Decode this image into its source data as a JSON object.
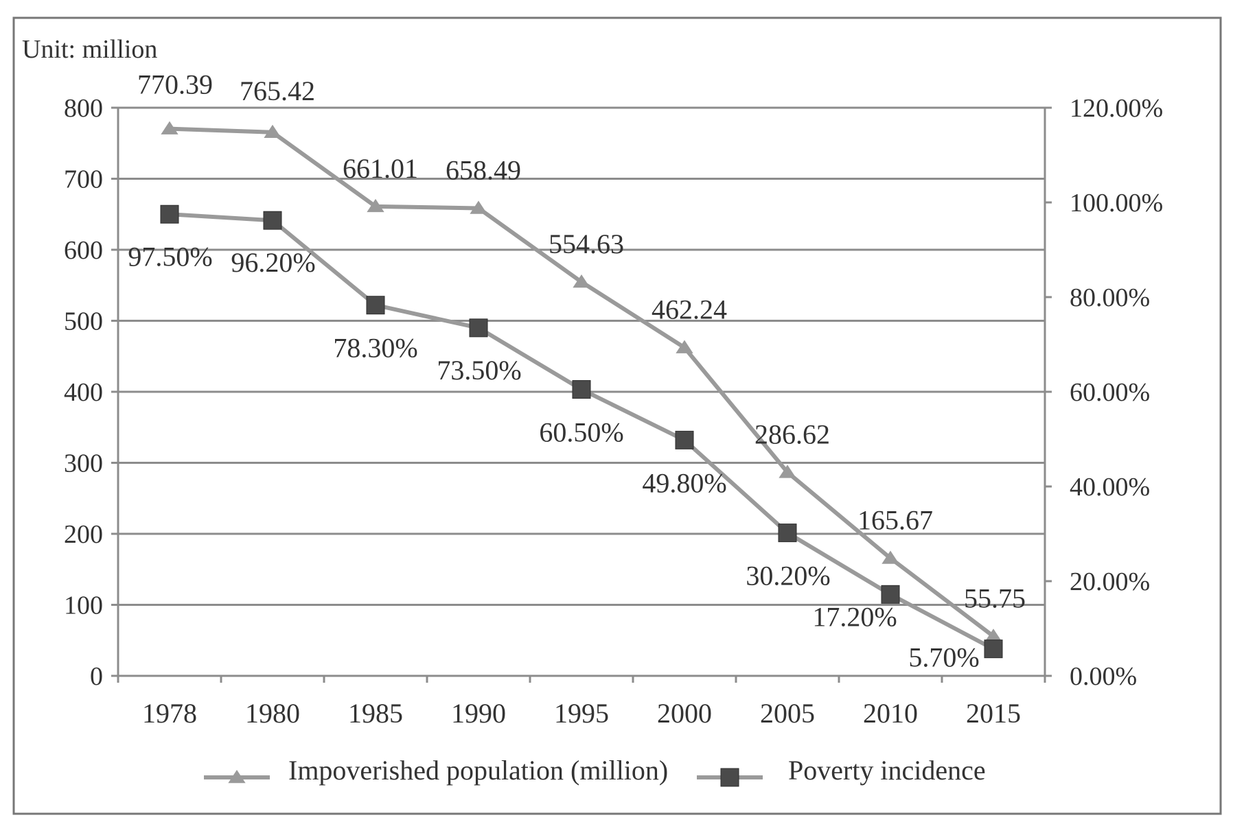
{
  "chart_data": {
    "type": "line",
    "unit_label": "Unit: million",
    "categories": [
      "1978",
      "1980",
      "1985",
      "1990",
      "1995",
      "2000",
      "2005",
      "2010",
      "2015"
    ],
    "series": [
      {
        "name": "Impoverished population (million)",
        "axis": "left",
        "marker": "triangle",
        "values": [
          770.39,
          765.42,
          661.01,
          658.49,
          554.63,
          462.24,
          286.62,
          165.67,
          55.75
        ],
        "labels": [
          "770.39",
          "765.42",
          "661.01",
          "658.49",
          "554.63",
          "462.24",
          "286.62",
          "165.67",
          "55.75"
        ]
      },
      {
        "name": "Poverty incidence",
        "axis": "right",
        "marker": "square",
        "values": [
          97.5,
          96.2,
          78.3,
          73.5,
          60.5,
          49.8,
          30.2,
          17.2,
          5.7
        ],
        "labels": [
          "97.50%",
          "96.20%",
          "78.30%",
          "73.50%",
          "60.50%",
          "49.80%",
          "30.20%",
          "17.20%",
          "5.70%"
        ]
      }
    ],
    "y_left": {
      "range": [
        0,
        800
      ],
      "ticks": [
        "0",
        "100",
        "200",
        "300",
        "400",
        "500",
        "600",
        "700",
        "800"
      ]
    },
    "y_right": {
      "range": [
        0,
        120
      ],
      "ticks": [
        "0.00%",
        "20.00%",
        "40.00%",
        "60.00%",
        "80.00%",
        "100.00%",
        "120.00%"
      ]
    },
    "grid": true,
    "legend": "bottom",
    "colors": {
      "line": "#9a9a9a",
      "square_marker": "#4a4a4a",
      "grid": "#8c8c8c",
      "text": "#333333"
    }
  }
}
